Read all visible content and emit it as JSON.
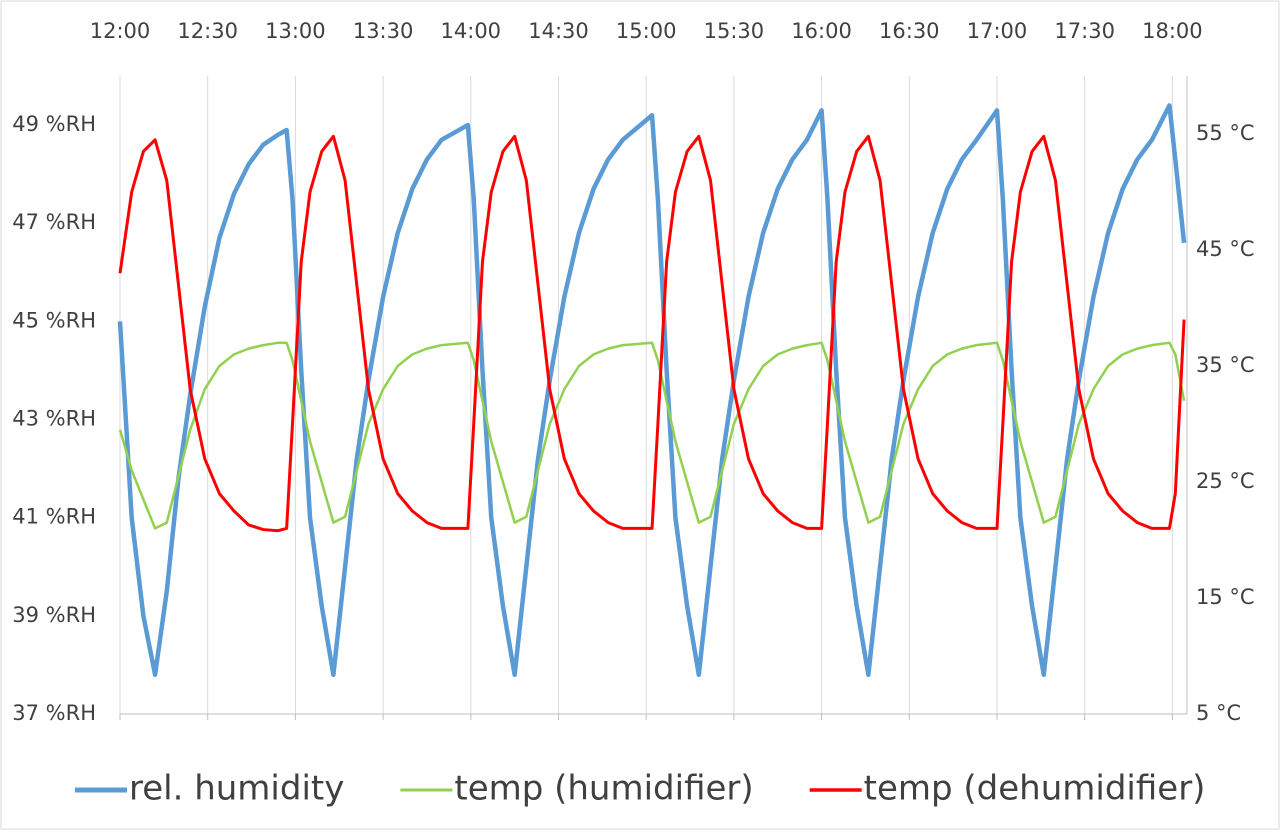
{
  "chart_data": {
    "type": "line",
    "x": [
      "12:00",
      "12:04",
      "12:08",
      "12:12",
      "12:16",
      "12:20",
      "12:24",
      "12:29",
      "12:34",
      "12:39",
      "12:44",
      "12:49",
      "12:54",
      "12:57",
      "12:59",
      "13:02",
      "13:05",
      "13:09",
      "13:13",
      "13:17",
      "13:21",
      "13:25",
      "13:30",
      "13:35",
      "13:40",
      "13:45",
      "13:50",
      "13:59",
      "14:01",
      "14:04",
      "14:07",
      "14:11",
      "14:15",
      "14:19",
      "14:23",
      "14:27",
      "14:32",
      "14:37",
      "14:42",
      "14:47",
      "14:52",
      "15:02",
      "15:04",
      "15:07",
      "15:10",
      "15:14",
      "15:18",
      "15:22",
      "15:26",
      "15:30",
      "15:35",
      "15:40",
      "15:45",
      "15:50",
      "15:55",
      "16:00",
      "16:02",
      "16:05",
      "16:08",
      "16:12",
      "16:16",
      "16:20",
      "16:24",
      "16:28",
      "16:33",
      "16:38",
      "16:43",
      "16:48",
      "16:53",
      "17:00",
      "17:02",
      "17:05",
      "17:08",
      "17:12",
      "17:16",
      "17:20",
      "17:24",
      "17:28",
      "17:33",
      "17:38",
      "17:43",
      "17:48",
      "17:53",
      "17:59",
      "18:01",
      "18:04"
    ],
    "series": [
      {
        "name": "rel. humidity",
        "color": "#5b9bd5",
        "axis": "y",
        "values": [
          45,
          41,
          39,
          37.8,
          39.5,
          41.8,
          43.5,
          45.3,
          46.7,
          47.6,
          48.2,
          48.6,
          48.8,
          48.9,
          47.5,
          44,
          41,
          39.2,
          37.8,
          40,
          42.2,
          43.8,
          45.5,
          46.8,
          47.7,
          48.3,
          48.7,
          49.0,
          47.5,
          44,
          41,
          39.2,
          37.8,
          40,
          42.2,
          43.8,
          45.5,
          46.8,
          47.7,
          48.3,
          48.7,
          49.2,
          47.5,
          44,
          41,
          39.2,
          37.8,
          40,
          42.2,
          43.8,
          45.5,
          46.8,
          47.7,
          48.3,
          48.7,
          49.3,
          47.5,
          44,
          41,
          39.2,
          37.8,
          40,
          42.2,
          43.8,
          45.5,
          46.8,
          47.7,
          48.3,
          48.7,
          49.3,
          47.5,
          44,
          41,
          39.2,
          37.8,
          40,
          42.2,
          43.8,
          45.5,
          46.8,
          47.7,
          48.3,
          48.7,
          49.4,
          48.3,
          46.6
        ]
      },
      {
        "name": "temp (humidifier)",
        "color": "#92d050",
        "axis": "y2",
        "values": [
          29.5,
          26,
          23.5,
          21,
          21.5,
          25.5,
          29.5,
          33,
          35,
          36,
          36.5,
          36.8,
          37,
          37,
          35.5,
          32,
          28.5,
          25,
          21.5,
          22,
          26,
          30,
          33,
          35,
          36,
          36.5,
          36.8,
          37,
          35.5,
          32,
          28.5,
          25,
          21.5,
          22,
          26,
          30,
          33,
          35,
          36,
          36.5,
          36.8,
          37,
          35.5,
          32,
          28.5,
          25,
          21.5,
          22,
          26,
          30,
          33,
          35,
          36,
          36.5,
          36.8,
          37,
          35.5,
          32,
          28.5,
          25,
          21.5,
          22,
          26,
          30,
          33,
          35,
          36,
          36.5,
          36.8,
          37,
          35.5,
          32,
          28.5,
          25,
          21.5,
          22,
          26,
          30,
          33,
          35,
          36,
          36.5,
          36.8,
          37,
          36,
          32
        ]
      },
      {
        "name": "temp (dehumidifier)",
        "color": "#ff0000",
        "axis": "y2",
        "values": [
          43,
          50,
          53.5,
          54.5,
          51,
          42,
          33,
          27,
          24,
          22.5,
          21.3,
          20.9,
          20.8,
          21,
          30,
          44,
          50,
          53.5,
          54.8,
          51,
          42,
          33,
          27,
          24,
          22.5,
          21.5,
          21,
          21,
          30,
          44,
          50,
          53.5,
          54.8,
          51,
          42,
          33,
          27,
          24,
          22.5,
          21.5,
          21,
          21,
          30,
          44,
          50,
          53.5,
          54.8,
          51,
          42,
          33,
          27,
          24,
          22.5,
          21.5,
          21,
          21,
          30,
          44,
          50,
          53.5,
          54.8,
          51,
          42,
          33,
          27,
          24,
          22.5,
          21.5,
          21,
          21,
          30,
          44,
          50,
          53.5,
          54.8,
          51,
          42,
          33,
          27,
          24,
          22.5,
          21.5,
          21,
          21,
          24,
          39
        ]
      }
    ],
    "xlim": [
      "12:00",
      "18:05"
    ],
    "xticks": [
      "12:00",
      "12:30",
      "13:00",
      "13:30",
      "14:00",
      "14:30",
      "15:00",
      "15:30",
      "16:00",
      "16:30",
      "17:00",
      "17:30",
      "18:00"
    ],
    "ylim": [
      37,
      50
    ],
    "yticks": [
      {
        "value": 37,
        "label": "37 %RH"
      },
      {
        "value": 39,
        "label": "39 %RH"
      },
      {
        "value": 41,
        "label": "41 %RH"
      },
      {
        "value": 43,
        "label": "43 %RH"
      },
      {
        "value": 45,
        "label": "45 %RH"
      },
      {
        "value": 47,
        "label": "47 %RH"
      },
      {
        "value": 49,
        "label": "49 %RH"
      }
    ],
    "y2lim": [
      5,
      60
    ],
    "y2ticks": [
      {
        "value": 5,
        "label": "5 °C"
      },
      {
        "value": 15,
        "label": "15 °C"
      },
      {
        "value": 25,
        "label": "25 °C"
      },
      {
        "value": 35,
        "label": "35 °C"
      },
      {
        "value": 45,
        "label": "45 °C"
      },
      {
        "value": 55,
        "label": "55 °C"
      }
    ],
    "grid": true,
    "legend": "bottom"
  }
}
